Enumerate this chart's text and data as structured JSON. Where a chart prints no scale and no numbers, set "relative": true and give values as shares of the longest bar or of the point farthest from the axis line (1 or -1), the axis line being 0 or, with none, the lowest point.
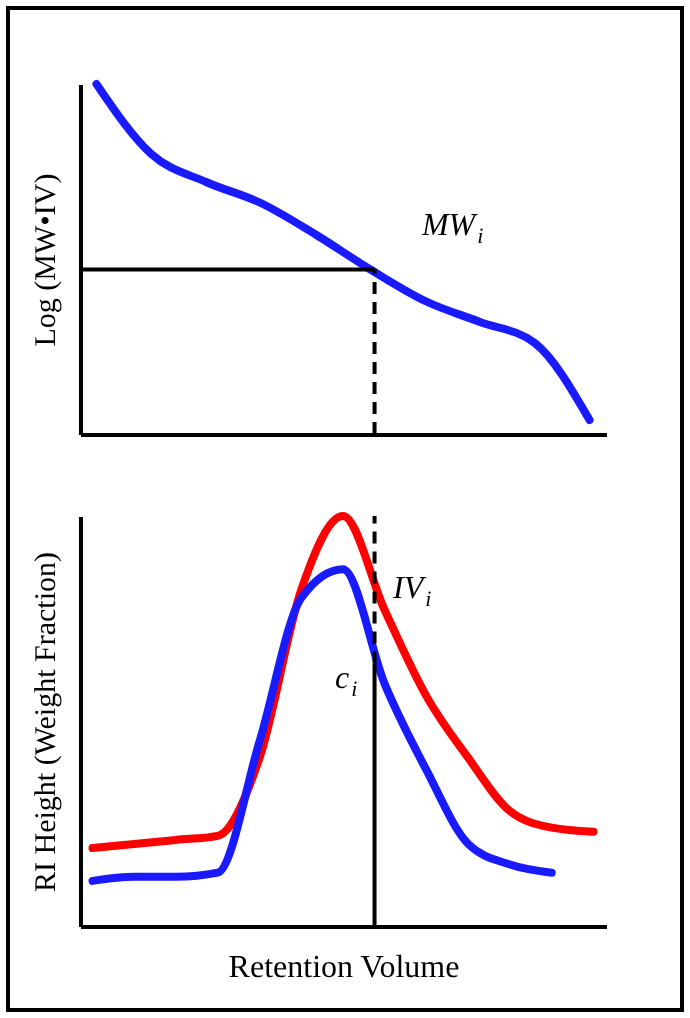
{
  "chart_data": [
    {
      "type": "line",
      "relative": true,
      "ylabel": "Log (MW•IV)",
      "categories": [
        null,
        null,
        null,
        null,
        null,
        null,
        null,
        null,
        null,
        null
      ],
      "series": [
        {
          "color": "#1a1aff",
          "values": [
            1.0,
            0.8,
            0.72,
            0.66,
            0.57,
            0.47,
            0.38,
            0.32,
            0.26,
            0.04
          ]
        }
      ],
      "ref_lines": [
        {
          "axis": "y",
          "value": 0.47,
          "color": "#000000",
          "line_style": "solid"
        }
      ],
      "annotations": [
        "MW$_{i}$"
      ],
      "grid": false,
      "legend": false,
      "tick_labels": false
    },
    {
      "type": "line",
      "relative": true,
      "xlabel": "Retention Volume",
      "ylabel": "RI Height (Weight Fraction)",
      "categories": [
        null,
        null,
        null,
        null,
        null,
        null,
        null,
        null,
        null,
        null,
        null,
        null,
        null
      ],
      "series": [
        {
          "color": "#ff0000",
          "values": [
            0.19,
            0.2,
            0.21,
            0.22,
            0.41,
            0.82,
            1.0,
            0.77,
            0.56,
            0.41,
            0.28,
            0.24,
            0.23
          ]
        },
        {
          "color": "#1a1aff",
          "values": [
            0.11,
            0.12,
            0.12,
            0.13,
            0.45,
            0.8,
            0.87,
            0.59,
            0.38,
            0.2,
            0.15,
            0.13,
            null
          ]
        }
      ],
      "annotations": [
        "IV$_{i}$",
        "c$_{i}$"
      ],
      "grid": false,
      "legend": false,
      "tick_labels": false
    }
  ]
}
